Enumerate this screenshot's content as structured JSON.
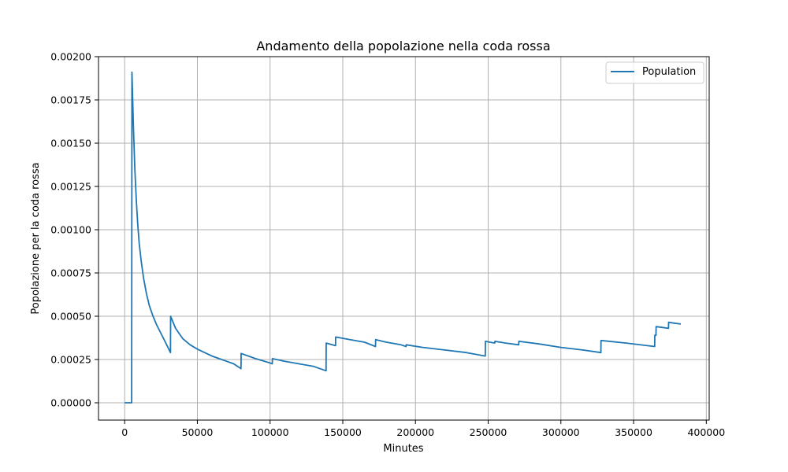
{
  "chart_data": {
    "type": "line",
    "title": "Andamento della popolazione nella coda rossa",
    "xlabel": "Minutes",
    "ylabel": "Popolazione per la coda rossa",
    "xlim": [
      -18000,
      402000
    ],
    "ylim": [
      -0.0001,
      0.002
    ],
    "xticks": [
      0,
      50000,
      100000,
      150000,
      200000,
      250000,
      300000,
      350000,
      400000
    ],
    "xtick_labels": [
      "0",
      "50000",
      "100000",
      "150000",
      "200000",
      "250000",
      "300000",
      "350000",
      "400000"
    ],
    "yticks": [
      0,
      0.00025,
      0.0005,
      0.00075,
      0.001,
      0.00125,
      0.0015,
      0.00175,
      0.002
    ],
    "ytick_labels": [
      "0.00000",
      "0.00025",
      "0.00050",
      "0.00075",
      "0.00100",
      "0.00125",
      "0.00150",
      "0.00175",
      "0.00200"
    ],
    "grid": true,
    "legend_position": "top-right",
    "series": [
      {
        "name": "Population",
        "color": "#1f77b4",
        "points": [
          [
            0,
            0
          ],
          [
            4800,
            0
          ],
          [
            5000,
            0.00191
          ],
          [
            6000,
            0.0016
          ],
          [
            7000,
            0.00135
          ],
          [
            8000,
            0.00117
          ],
          [
            9000,
            0.00103
          ],
          [
            10000,
            0.00092
          ],
          [
            11500,
            0.00081
          ],
          [
            13000,
            0.00072
          ],
          [
            15000,
            0.00063
          ],
          [
            17000,
            0.00056
          ],
          [
            19500,
            0.0005
          ],
          [
            22000,
            0.00045
          ],
          [
            25000,
            0.0004
          ],
          [
            28000,
            0.00035
          ],
          [
            31500,
            0.00029
          ],
          [
            31600,
            0.0005
          ],
          [
            35000,
            0.00043
          ],
          [
            40000,
            0.00037
          ],
          [
            45000,
            0.000335
          ],
          [
            50000,
            0.00031
          ],
          [
            55000,
            0.00029
          ],
          [
            60000,
            0.00027
          ],
          [
            65000,
            0.000255
          ],
          [
            70000,
            0.00024
          ],
          [
            75000,
            0.000225
          ],
          [
            80000,
            0.000197
          ],
          [
            80100,
            0.000285
          ],
          [
            90000,
            0.000255
          ],
          [
            100000,
            0.00023
          ],
          [
            101500,
            0.000225
          ],
          [
            101600,
            0.000255
          ],
          [
            110000,
            0.00024
          ],
          [
            120000,
            0.000225
          ],
          [
            130000,
            0.00021
          ],
          [
            138500,
            0.000185
          ],
          [
            138600,
            0.000345
          ],
          [
            145000,
            0.00033
          ],
          [
            145100,
            0.00038
          ],
          [
            155000,
            0.000365
          ],
          [
            165000,
            0.00035
          ],
          [
            172500,
            0.000325
          ],
          [
            172600,
            0.000365
          ],
          [
            180000,
            0.00035
          ],
          [
            190000,
            0.000335
          ],
          [
            193500,
            0.000325
          ],
          [
            193600,
            0.000335
          ],
          [
            205000,
            0.00032
          ],
          [
            220000,
            0.000305
          ],
          [
            235000,
            0.00029
          ],
          [
            248000,
            0.00027
          ],
          [
            248100,
            0.000355
          ],
          [
            254500,
            0.000345
          ],
          [
            254600,
            0.000355
          ],
          [
            262000,
            0.000345
          ],
          [
            271000,
            0.000335
          ],
          [
            271100,
            0.000355
          ],
          [
            285000,
            0.00034
          ],
          [
            300000,
            0.00032
          ],
          [
            315000,
            0.000305
          ],
          [
            327500,
            0.00029
          ],
          [
            327600,
            0.00036
          ],
          [
            345000,
            0.000345
          ],
          [
            364500,
            0.000325
          ],
          [
            364600,
            0.00039
          ],
          [
            365400,
            0.00039
          ],
          [
            365500,
            0.00044
          ],
          [
            370000,
            0.000435
          ],
          [
            374000,
            0.00043
          ],
          [
            374100,
            0.000465
          ],
          [
            378000,
            0.00046
          ],
          [
            382500,
            0.000455
          ]
        ]
      }
    ]
  }
}
